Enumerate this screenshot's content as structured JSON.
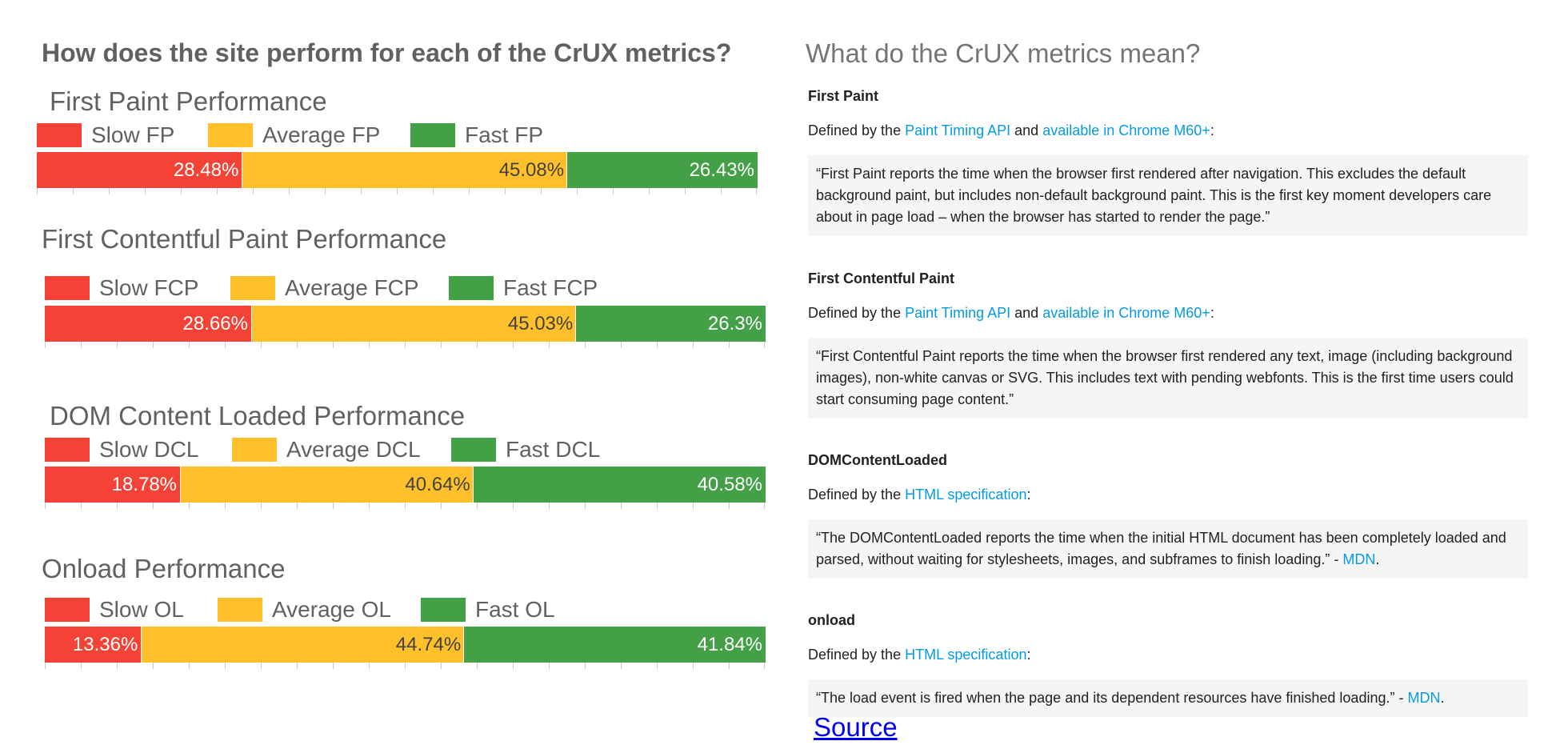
{
  "left_title": "How does the site perform for each of the CrUX metrics?",
  "right_title": "What do the CrUX metrics mean?",
  "colors": {
    "slow": "#f44336",
    "average": "#ffc02b",
    "fast": "#43a047"
  },
  "chart_data": [
    {
      "type": "bar",
      "stacked": true,
      "title": "First Paint Performance",
      "legend": [
        "Slow FP",
        "Average FP",
        "Fast FP"
      ],
      "values": [
        28.48,
        45.08,
        26.43
      ],
      "labels": [
        "28.48%",
        "45.08%",
        "26.43%"
      ]
    },
    {
      "type": "bar",
      "stacked": true,
      "title": "First Contentful Paint Performance",
      "legend": [
        "Slow FCP",
        "Average FCP",
        "Fast FCP"
      ],
      "values": [
        28.66,
        45.03,
        26.3
      ],
      "labels": [
        "28.66%",
        "45.03%",
        "26.3%"
      ]
    },
    {
      "type": "bar",
      "stacked": true,
      "title": "DOM Content Loaded Performance",
      "legend": [
        "Slow DCL",
        "Average DCL",
        "Fast DCL"
      ],
      "values": [
        18.78,
        40.64,
        40.58
      ],
      "labels": [
        "18.78%",
        "40.64%",
        "40.58%"
      ]
    },
    {
      "type": "bar",
      "stacked": true,
      "title": "Onload Performance",
      "legend": [
        "Slow OL",
        "Average OL",
        "Fast OL"
      ],
      "values": [
        13.36,
        44.74,
        41.84
      ],
      "labels": [
        "13.36%",
        "44.74%",
        "41.84%"
      ]
    }
  ],
  "definitions": [
    {
      "heading": "First Paint",
      "defined_prefix": "Defined by the ",
      "link1": "Paint Timing API",
      "mid": " and ",
      "link2": "available in Chrome M60+",
      "suffix": ":",
      "quote": "“First Paint reports the time when the browser first rendered after navigation. This excludes the default background paint, but includes non-default background paint. This is the first key moment developers care about in page load – when the browser has started to render the page.”"
    },
    {
      "heading": "First Contentful Paint",
      "defined_prefix": "Defined by the ",
      "link1": "Paint Timing API",
      "mid": " and ",
      "link2": "available in Chrome M60+",
      "suffix": ":",
      "quote": "“First Contentful Paint reports the time when the browser first rendered any text, image (including background images), non-white canvas or SVG. This includes text with pending webfonts. This is the first time users could start consuming page content.”"
    },
    {
      "heading": "DOMContentLoaded",
      "defined_prefix": "Defined by the ",
      "link1": "HTML specification",
      "suffix": ":",
      "quote": "“The DOMContentLoaded reports the time when the initial HTML document has been completely loaded and parsed, without waiting for stylesheets, images, and subframes to finish loading.” - ",
      "quote_link": "MDN",
      "quote_end": "."
    },
    {
      "heading": "onload",
      "defined_prefix": "Defined by the ",
      "link1": "HTML specification",
      "suffix": ":",
      "quote": "“The load event is fired when the page and its dependent resources have finished loading.” - ",
      "quote_link": "MDN",
      "quote_end": "."
    }
  ],
  "source_label": "Source"
}
